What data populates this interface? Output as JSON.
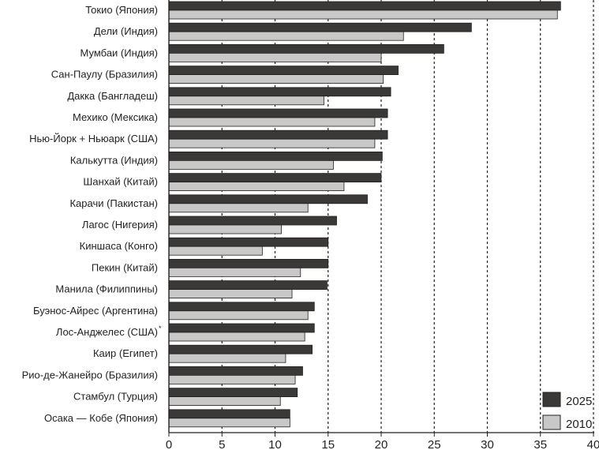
{
  "chart_data": {
    "type": "bar",
    "orientation": "horizontal",
    "categories": [
      "Токио (Япония)",
      "Дели (Индия)",
      "Мумбаи (Индия)",
      "Сан-Паулу (Бразилия)",
      "Дакка (Бангладеш)",
      "Мехико (Мексика)",
      "Нью-Йорк + Ньюарк (США)",
      "Калькутта (Индия)",
      "Шанхай (Китай)",
      "Карачи (Пакистан)",
      "Лагос (Нигерия)",
      "Киншаса (Конго)",
      "Пекин (Китай)",
      "Манила (Филиппины)",
      "Буэнос-Айрес (Аргентина)",
      "Лос-Анджелес (США)",
      "Каир (Египет)",
      "Рио-де-Жанейро (Бразилия)",
      "Стамбул (Турция)",
      "Осака — Кобе (Япония)"
    ],
    "series": [
      {
        "name": "2025",
        "color": "#3b3838",
        "values": [
          36.9,
          28.5,
          25.9,
          21.6,
          20.9,
          20.6,
          20.6,
          20.1,
          20.0,
          18.7,
          15.8,
          15.0,
          15.0,
          14.9,
          13.7,
          13.7,
          13.5,
          12.6,
          12.1,
          11.4
        ]
      },
      {
        "name": "2010",
        "color": "#c8c8c8",
        "values": [
          36.6,
          22.1,
          20.0,
          20.2,
          14.6,
          19.4,
          19.4,
          15.5,
          16.5,
          13.1,
          10.6,
          8.8,
          12.4,
          11.6,
          13.1,
          12.8,
          11.0,
          11.9,
          10.5,
          11.4
        ]
      }
    ],
    "annotations": [
      {
        "category_index": 15,
        "text": "*"
      }
    ],
    "xlim": [
      0,
      40
    ],
    "xticks": [
      "0",
      "5",
      "10",
      "15",
      "20",
      "25",
      "30",
      "35",
      "40"
    ],
    "grid": "vertical dashed",
    "legend_position": "bottom-right",
    "title": "",
    "xlabel": "",
    "ylabel": ""
  }
}
